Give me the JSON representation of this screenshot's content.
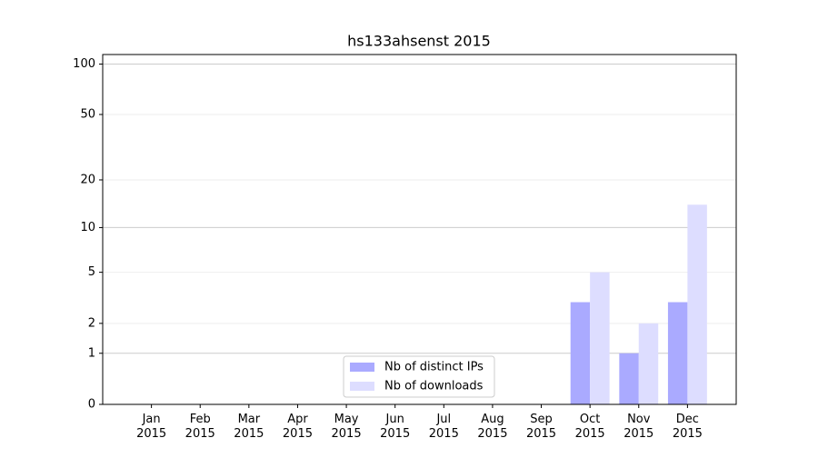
{
  "chart_data": {
    "type": "bar",
    "title": "hs133ahsenst 2015",
    "categories": [
      "Jan 2015",
      "Feb 2015",
      "Mar 2015",
      "Apr 2015",
      "May 2015",
      "Jun 2015",
      "Jul 2015",
      "Aug 2015",
      "Sep 2015",
      "Oct 2015",
      "Nov 2015",
      "Dec 2015"
    ],
    "series": [
      {
        "name": "Nb of distinct IPs",
        "color": "#aaaaff",
        "values": [
          0,
          0,
          0,
          0,
          0,
          0,
          0,
          0,
          0,
          3,
          1,
          3
        ]
      },
      {
        "name": "Nb of downloads",
        "color": "#ddddff",
        "values": [
          0,
          0,
          0,
          0,
          0,
          0,
          0,
          0,
          0,
          5,
          2,
          14
        ]
      }
    ],
    "yscale": "log1p",
    "ylim": [
      0,
      114
    ],
    "yticks": [
      0,
      1,
      2,
      5,
      10,
      20,
      50,
      100
    ],
    "grid": true,
    "legend": "lower center"
  }
}
